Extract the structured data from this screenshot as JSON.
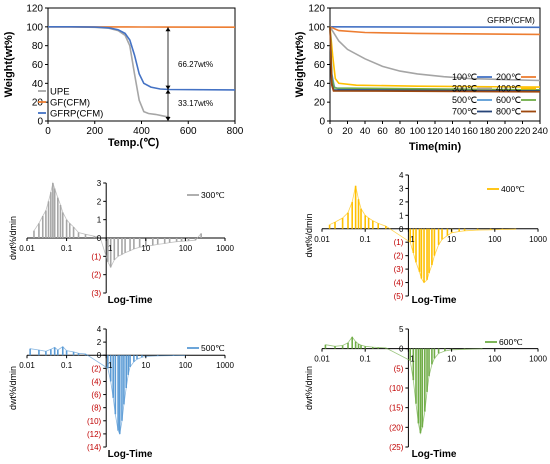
{
  "chart_data": [
    {
      "type": "line",
      "xlabel": "Temp.(℃)",
      "ylabel": "Weight(wt%)",
      "xlim": [
        0,
        800
      ],
      "ylim": [
        0,
        120
      ],
      "x_ticks": [
        "0",
        "200",
        "400",
        "600",
        "800"
      ],
      "y_ticks": [
        "0",
        "20",
        "40",
        "60",
        "80",
        "100",
        "120"
      ],
      "grid": false,
      "legend_position": "bottom-left",
      "annotations": [
        "66.27wt%",
        "33.17wt%"
      ],
      "series": [
        {
          "name": "UPE",
          "color": "#a6a6a6",
          "x": [
            0,
            100,
            200,
            260,
            300,
            330,
            350,
            370,
            390,
            410,
            430,
            460,
            500,
            520
          ],
          "y": [
            100,
            100,
            99.5,
            98.5,
            96,
            91,
            80,
            50,
            22,
            10,
            8,
            7,
            5,
            4
          ]
        },
        {
          "name": "GF(CFM)",
          "color": "#ed7d31",
          "x": [
            0,
            200,
            400,
            520,
            800
          ],
          "y": [
            100,
            99.9,
            99.8,
            99.7,
            99.6
          ]
        },
        {
          "name": "GFRP(CFM)",
          "color": "#4472c4",
          "x": [
            0,
            100,
            200,
            260,
            300,
            330,
            350,
            370,
            390,
            410,
            440,
            480,
            520,
            800
          ],
          "y": [
            100,
            100,
            99.7,
            99,
            97,
            93,
            86,
            70,
            50,
            40,
            36,
            34,
            33.5,
            33
          ]
        }
      ]
    },
    {
      "type": "line",
      "title": "GFRP(CFM)",
      "xlabel": "Time(min)",
      "ylabel": "Weight(wt%)",
      "xlim": [
        0,
        240
      ],
      "ylim": [
        0,
        120
      ],
      "x_ticks": [
        "0",
        "20",
        "40",
        "60",
        "80",
        "100",
        "120",
        "140",
        "160",
        "180",
        "200",
        "220",
        "240"
      ],
      "y_ticks": [
        "0",
        "20",
        "40",
        "60",
        "80",
        "100",
        "120"
      ],
      "grid": false,
      "legend_position": "bottom-right",
      "series": [
        {
          "name": "100℃",
          "color": "#4472c4",
          "x": [
            0,
            240
          ],
          "y": [
            100,
            99.5
          ]
        },
        {
          "name": "200℃",
          "color": "#ed7d31",
          "x": [
            0,
            10,
            40,
            100,
            240
          ],
          "y": [
            100,
            96,
            94,
            93,
            92
          ]
        },
        {
          "name": "300℃",
          "color": "#a5a5a5",
          "x": [
            0,
            10,
            20,
            40,
            60,
            80,
            100,
            130,
            160,
            200,
            240
          ],
          "y": [
            100,
            85,
            76,
            66,
            58,
            53,
            50,
            47,
            45,
            44,
            43
          ]
        },
        {
          "name": "400℃",
          "color": "#ffc000",
          "x": [
            0,
            3,
            6,
            10,
            30,
            100,
            240
          ],
          "y": [
            100,
            70,
            45,
            40,
            38,
            37,
            36
          ]
        },
        {
          "name": "500℃",
          "color": "#5b9bd5",
          "x": [
            0,
            2,
            5,
            10,
            240
          ],
          "y": [
            100,
            50,
            36,
            34,
            33
          ]
        },
        {
          "name": "600℃",
          "color": "#70ad47",
          "x": [
            0,
            2,
            5,
            240
          ],
          "y": [
            100,
            45,
            35,
            33
          ]
        },
        {
          "name": "700℃",
          "color": "#264478",
          "x": [
            0,
            2,
            4,
            240
          ],
          "y": [
            100,
            40,
            33,
            32
          ]
        },
        {
          "name": "800℃",
          "color": "#9e480e",
          "x": [
            0,
            2,
            4,
            240
          ],
          "y": [
            100,
            38,
            32,
            31
          ]
        }
      ]
    },
    {
      "type": "bar",
      "series_label": "300℃",
      "color": "#a6a6a6",
      "xlabel": "Log-Time",
      "ylabel": "dwt%/dmin",
      "x_scale": "log",
      "xlim": [
        0.01,
        1000
      ],
      "ylim": [
        -3,
        3
      ],
      "x_ticks": [
        "0.01",
        "0.1",
        "1",
        "10",
        "100",
        "1000"
      ],
      "y_ticks": [
        "3",
        "2",
        "1",
        "0",
        "(1)",
        "(2)",
        "(3)"
      ],
      "x": [
        0.015,
        0.02,
        0.025,
        0.03,
        0.035,
        0.04,
        0.045,
        0.05,
        0.06,
        0.07,
        0.08,
        0.1,
        0.12,
        0.15,
        0.2,
        0.3,
        0.5,
        0.7,
        1.1,
        1.3,
        1.6,
        2,
        2.5,
        3,
        4,
        5,
        7,
        10,
        15,
        20,
        30,
        40,
        60,
        80,
        120,
        180,
        250
      ],
      "values": [
        0.4,
        0.8,
        1.2,
        1.5,
        2.0,
        2.5,
        3.0,
        2.7,
        2.2,
        1.8,
        1.4,
        1.0,
        0.8,
        0.6,
        0.3,
        0.2,
        0.1,
        0.05,
        -1.3,
        -1.6,
        -1.2,
        -1.0,
        -0.9,
        -0.8,
        -0.7,
        -0.6,
        -0.5,
        -0.45,
        -0.4,
        -0.35,
        -0.3,
        -0.25,
        -0.2,
        -0.18,
        -0.15,
        -0.12,
        0.25
      ]
    },
    {
      "type": "bar",
      "series_label": "400℃",
      "color": "#ffc000",
      "xlabel": "Log-Time",
      "ylabel": "dwt%/dmin",
      "x_scale": "log",
      "xlim": [
        0.01,
        1000
      ],
      "ylim": [
        -5,
        4
      ],
      "x_ticks": [
        "0.01",
        "0.1",
        "1",
        "10",
        "100",
        "1000"
      ],
      "y_ticks": [
        "4",
        "3",
        "2",
        "1",
        "0",
        "(1)",
        "(2)",
        "(3)",
        "(4)",
        "(5)"
      ],
      "x": [
        0.015,
        0.02,
        0.03,
        0.04,
        0.05,
        0.06,
        0.07,
        0.08,
        0.1,
        0.12,
        0.15,
        0.2,
        0.3,
        1.1,
        1.3,
        1.5,
        1.8,
        2,
        2.3,
        2.7,
        3,
        3.5,
        4,
        5,
        6,
        8,
        10,
        15,
        20,
        40,
        80,
        150,
        300
      ],
      "values": [
        0.3,
        0.5,
        0.8,
        1.2,
        2.0,
        3.2,
        2.2,
        1.5,
        1.0,
        0.8,
        0.6,
        0.4,
        0.2,
        -1.0,
        -1.8,
        -2.5,
        -3.2,
        -3.7,
        -4.0,
        -3.8,
        -3.3,
        -2.7,
        -2.0,
        -1.2,
        -0.8,
        -0.5,
        -0.3,
        -0.2,
        -0.15,
        -0.1,
        -0.08,
        -0.05,
        -0.03
      ]
    },
    {
      "type": "bar",
      "series_label": "500℃",
      "color": "#5b9bd5",
      "xlabel": "Log-Time",
      "ylabel": "dwt%/dmin",
      "x_scale": "log",
      "xlim": [
        0.01,
        1000
      ],
      "ylim": [
        -14,
        4
      ],
      "x_ticks": [
        "0.01",
        "0.1",
        "1",
        "10",
        "100",
        "1000"
      ],
      "y_ticks": [
        "4",
        "2",
        "0",
        "(2)",
        "(4)",
        "(6)",
        "(8)",
        "(10)",
        "(12)",
        "(14)"
      ],
      "x": [
        0.012,
        0.02,
        0.03,
        0.04,
        0.05,
        0.06,
        0.08,
        0.1,
        0.15,
        0.2,
        0.3,
        1.1,
        1.3,
        1.5,
        1.7,
        2,
        2.2,
        2.5,
        2.8,
        3.2,
        3.6,
        4,
        5,
        6,
        8,
        10,
        20,
        50,
        100
      ],
      "values": [
        1.0,
        0.8,
        0.6,
        0.9,
        1.2,
        0.8,
        1.3,
        0.7,
        0.5,
        0.3,
        0.2,
        -2.0,
        -4.0,
        -6.5,
        -9.0,
        -11.5,
        -12.0,
        -10.0,
        -7.5,
        -5.0,
        -3.0,
        -1.8,
        -1.0,
        -0.6,
        -0.3,
        -0.2,
        -0.1,
        -0.05,
        -0.03
      ]
    },
    {
      "type": "bar",
      "series_label": "600℃",
      "color": "#70ad47",
      "xlabel": "Log-Time",
      "ylabel": "dwt%/dmin",
      "x_scale": "log",
      "xlim": [
        0.01,
        1000
      ],
      "ylim": [
        -25,
        5
      ],
      "x_ticks": [
        "0.01",
        "0.1",
        "1",
        "10",
        "100",
        "1000"
      ],
      "y_ticks": [
        "5",
        "0",
        "(5)",
        "(10)",
        "(15)",
        "(20)",
        "(25)"
      ],
      "x": [
        0.012,
        0.02,
        0.03,
        0.04,
        0.05,
        0.06,
        0.07,
        0.08,
        0.1,
        0.15,
        0.2,
        0.3,
        1.1,
        1.3,
        1.5,
        1.7,
        1.9,
        2.1,
        2.4,
        2.7,
        3,
        3.5,
        4,
        5,
        7,
        10,
        20,
        50
      ],
      "values": [
        1.0,
        0.6,
        0.8,
        1.5,
        3.0,
        1.8,
        1.2,
        0.9,
        0.6,
        0.4,
        0.3,
        0.2,
        -3.0,
        -8.0,
        -14.0,
        -19.0,
        -21.5,
        -20.0,
        -16.0,
        -11.0,
        -7.0,
        -4.0,
        -2.5,
        -1.2,
        -0.6,
        -0.3,
        -0.15,
        -0.05
      ]
    }
  ]
}
